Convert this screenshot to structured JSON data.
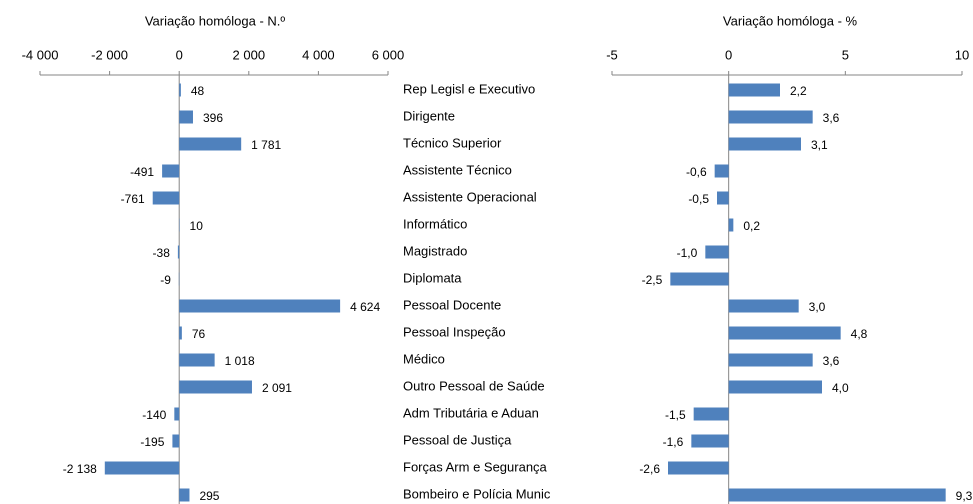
{
  "chart_data": [
    {
      "type": "barh",
      "x_label": "Variação homóloga  -  N.º",
      "categories": [
        "Rep Legisl e Executivo",
        "Dirigente",
        "Técnico Superior",
        "Assistente Técnico",
        "Assistente Operacional",
        "Informático",
        "Magistrado",
        "Diplomata",
        "Pessoal Docente",
        "Pessoal Inspeção",
        "Médico",
        "Outro Pessoal de Saúde",
        "Adm Tributária e Aduan",
        "Pessoal de Justiça",
        "Forças Arm e Segurança",
        "Bombeiro e Polícia Munic"
      ],
      "values": [
        48,
        396,
        1781,
        -491,
        -761,
        10,
        -38,
        -9,
        4624,
        76,
        1018,
        2091,
        -140,
        -195,
        -2138,
        295
      ],
      "value_labels": [
        "48",
        "396",
        "1 781",
        "-491",
        "-761",
        "10",
        "-38",
        "-9",
        "4 624",
        "76",
        "1 018",
        "2 091",
        "-140",
        "-195",
        "-2 138",
        "295"
      ],
      "color": "#4f81bd",
      "xlim": [
        -4000,
        6000
      ],
      "xticks": [
        {
          "value": -4000,
          "label": "-4 000"
        },
        {
          "value": -2000,
          "label": "-2 000"
        },
        0,
        {
          "value": 2000,
          "label": "2 000"
        },
        {
          "value": 4000,
          "label": "4 000"
        },
        {
          "value": 6000,
          "label": "6 000"
        }
      ]
    },
    {
      "type": "barh",
      "x_label": "Variação homóloga  -  %",
      "values": [
        2.2,
        3.6,
        3.1,
        -0.6,
        -0.5,
        0.2,
        -1.0,
        -2.5,
        3.0,
        4.8,
        3.6,
        4.0,
        -1.5,
        -1.6,
        -2.6,
        9.3
      ],
      "value_labels": [
        "2,2",
        "3,6",
        "3,1",
        "-0,6",
        "-0,5",
        "0,2",
        "-1,0",
        "-2,5",
        "3,0",
        "4,8",
        "3,6",
        "4,0",
        "-1,5",
        "-1,6",
        "-2,6",
        "9,3"
      ],
      "color": "#4f81bd",
      "xlim": [
        -5,
        10
      ],
      "xticks": [
        -5,
        0,
        5,
        10
      ]
    }
  ]
}
